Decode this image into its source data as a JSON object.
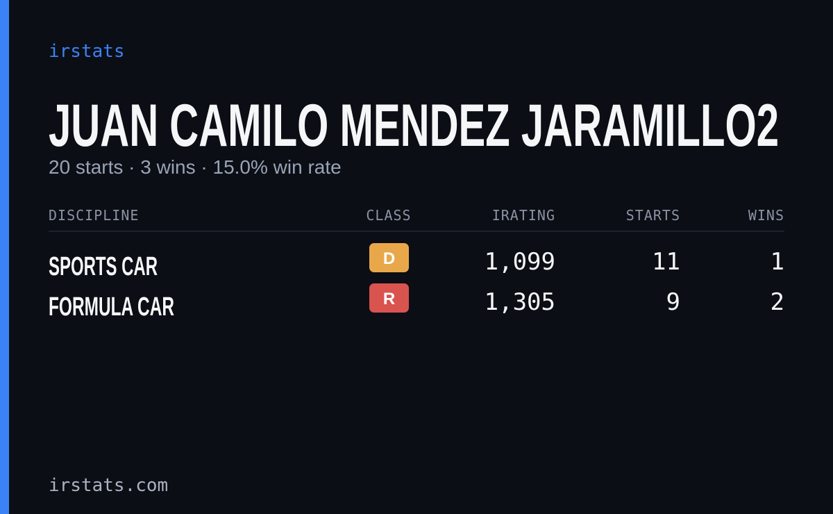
{
  "brand": "irstats",
  "driver": {
    "name": "JUAN CAMILO MENDEZ JARAMILLO2",
    "summary": "20 starts · 3 wins · 15.0% win rate"
  },
  "table": {
    "headers": [
      "DISCIPLINE",
      "CLASS",
      "IRATING",
      "STARTS",
      "WINS"
    ],
    "rows": [
      {
        "discipline": "SPORTS CAR",
        "class": "D",
        "irating": "1,099",
        "starts": 11,
        "wins": 1
      },
      {
        "discipline": "FORMULA CAR",
        "class": "R",
        "irating": "1,305",
        "starts": 9,
        "wins": 2
      }
    ]
  },
  "footer": "irstats.com"
}
